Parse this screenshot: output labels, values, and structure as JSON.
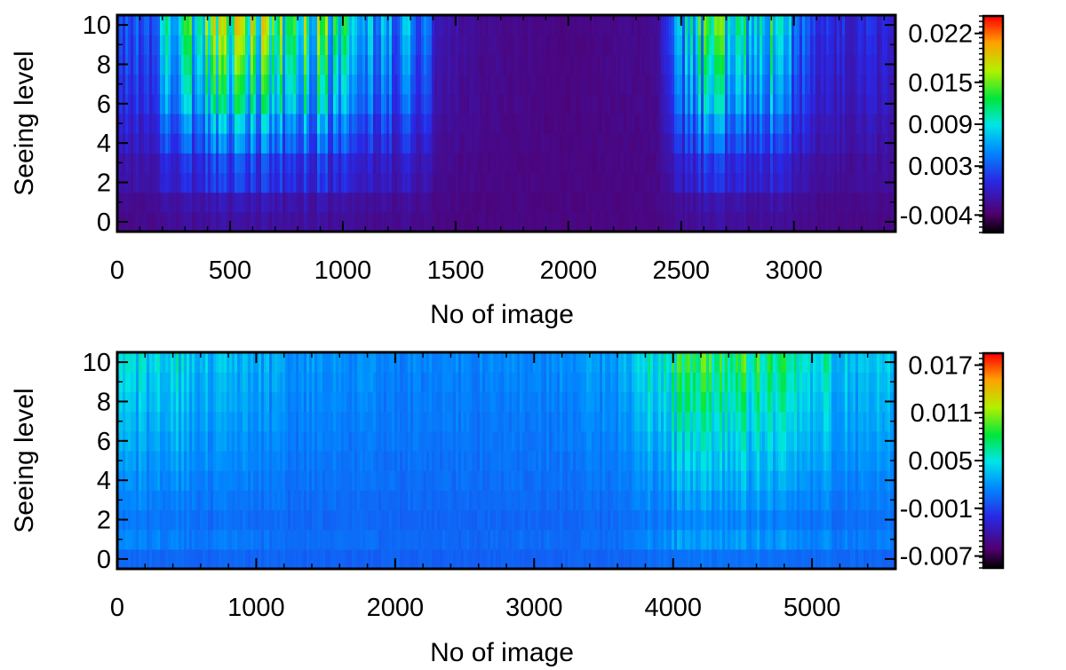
{
  "chart_data": [
    {
      "type": "heatmap",
      "title": "",
      "xlabel": "No of image",
      "ylabel": "Seeing level",
      "xlim": [
        0,
        3450
      ],
      "ylim": [
        -0.5,
        10.5
      ],
      "xticks": [
        "0",
        "500",
        "1000",
        "1500",
        "2000",
        "2500",
        "3000"
      ],
      "yticks": [
        "0",
        "2",
        "4",
        "6",
        "8",
        "10"
      ],
      "colorbar": {
        "range": [
          -0.0065,
          0.0245
        ],
        "ticks": [
          {
            "value": 0.022,
            "label": "0.022"
          },
          {
            "value": 0.015,
            "label": "0.015"
          },
          {
            "value": 0.009,
            "label": "0.009"
          },
          {
            "value": 0.003,
            "label": "0.003"
          },
          {
            "value": -0.004,
            "label": "-0.004"
          }
        ]
      },
      "level_profile": [
        -0.002,
        -0.0015,
        0.0005,
        0.001,
        0.003,
        0.0045,
        0.0065,
        0.0075,
        0.0085,
        0.0095,
        0.0105
      ],
      "activity": [
        {
          "x": 0,
          "a": 0.35
        },
        {
          "x": 150,
          "a": 0.45
        },
        {
          "x": 200,
          "a": 0.75
        },
        {
          "x": 350,
          "a": 0.95
        },
        {
          "x": 500,
          "a": 1.3
        },
        {
          "x": 700,
          "a": 1.15
        },
        {
          "x": 900,
          "a": 1.1
        },
        {
          "x": 1000,
          "a": 0.9
        },
        {
          "x": 1150,
          "a": 0.7
        },
        {
          "x": 1300,
          "a": 0.6
        },
        {
          "x": 1380,
          "a": 0.45
        },
        {
          "x": 1420,
          "a": 0.15
        },
        {
          "x": 1600,
          "a": 0.05
        },
        {
          "x": 2000,
          "a": 0.0
        },
        {
          "x": 2400,
          "a": 0.05
        },
        {
          "x": 2460,
          "a": 0.5
        },
        {
          "x": 2600,
          "a": 1.0
        },
        {
          "x": 2800,
          "a": 0.95
        },
        {
          "x": 2900,
          "a": 0.9
        },
        {
          "x": 3000,
          "a": 0.6
        },
        {
          "x": 3100,
          "a": 0.35
        },
        {
          "x": 3450,
          "a": 0.2
        }
      ]
    },
    {
      "type": "heatmap",
      "title": "",
      "xlabel": "No of image",
      "ylabel": "Seeing level",
      "xlim": [
        0,
        5600
      ],
      "ylim": [
        -0.5,
        10.5
      ],
      "xticks": [
        "0",
        "1000",
        "2000",
        "3000",
        "4000",
        "5000"
      ],
      "yticks": [
        "0",
        "2",
        "4",
        "6",
        "8",
        "10"
      ],
      "colorbar": {
        "range": [
          -0.0085,
          0.0185
        ],
        "ticks": [
          {
            "value": 0.017,
            "label": "0.017"
          },
          {
            "value": 0.011,
            "label": "0.011"
          },
          {
            "value": 0.005,
            "label": "0.005"
          },
          {
            "value": -0.001,
            "label": "-0.001"
          },
          {
            "value": -0.007,
            "label": "-0.007"
          }
        ]
      },
      "level_profile": [
        0.0005,
        0.0015,
        0.001,
        0.0015,
        0.002,
        0.0025,
        0.003,
        0.0035,
        0.004,
        0.0045,
        0.005
      ],
      "activity": [
        {
          "x": 0,
          "a": 0.85
        },
        {
          "x": 400,
          "a": 0.95
        },
        {
          "x": 700,
          "a": 0.75
        },
        {
          "x": 1200,
          "a": 0.45
        },
        {
          "x": 2000,
          "a": 0.3
        },
        {
          "x": 3000,
          "a": 0.3
        },
        {
          "x": 3300,
          "a": 0.4
        },
        {
          "x": 3700,
          "a": 0.55
        },
        {
          "x": 3800,
          "a": 1.0
        },
        {
          "x": 4100,
          "a": 1.6
        },
        {
          "x": 4500,
          "a": 1.55
        },
        {
          "x": 4900,
          "a": 1.4
        },
        {
          "x": 5200,
          "a": 0.8
        },
        {
          "x": 5600,
          "a": 0.7
        }
      ]
    }
  ]
}
